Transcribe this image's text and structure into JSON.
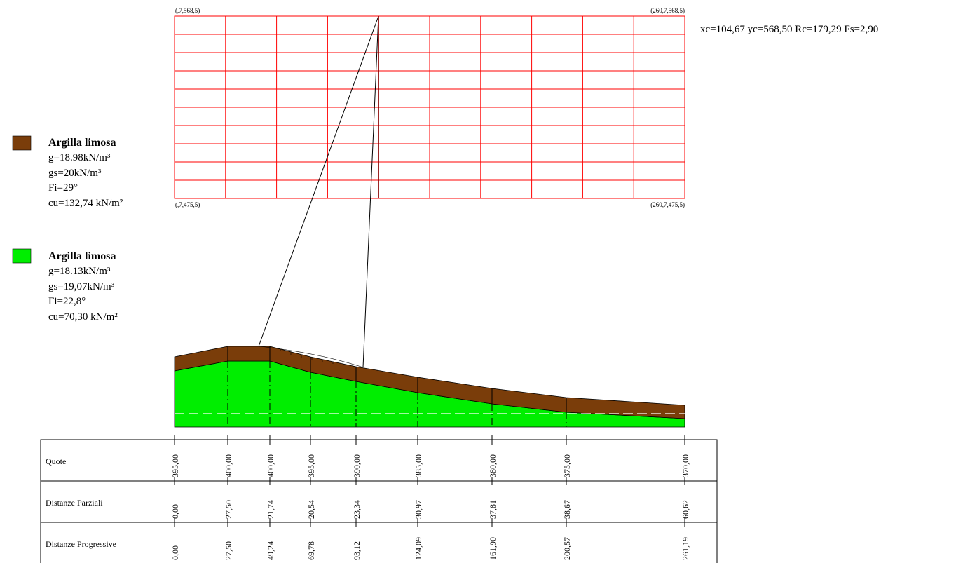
{
  "result": {
    "text": "xc=104,67 yc=568,50 Rc=179,29 Fs=2,90"
  },
  "grid": {
    "corner_top_left": "(,7,568,5)",
    "corner_top_right": "(260,7,568,5)",
    "corner_bottom_left": "(,7,475,5)",
    "corner_bottom_right": "(260,7,475,5)",
    "columns": 10,
    "rows": 10,
    "color": "#ff0000"
  },
  "materials": [
    {
      "name": "Argilla limosa",
      "color": "#7a3d0a",
      "g": "g=18.98kN/m³",
      "gs": "gs=20kN/m³",
      "fi": "Fi=29°",
      "cu": "cu=132,74 kN/m²"
    },
    {
      "name": "Argilla limosa",
      "color": "#00ee00",
      "g": "g=18.13kN/m³",
      "gs": "gs=19,07kN/m³",
      "fi": "Fi=22,8°",
      "cu": "cu=70,30 kN/m²"
    }
  ],
  "table": {
    "row_labels": [
      "Quote",
      "Distanze Parziali",
      "Distanze Progressive"
    ],
    "quote": [
      "395,00",
      "400,00",
      "400,00",
      "395,00",
      "390,00",
      "385,00",
      "380,00",
      "375,00",
      "370,00"
    ],
    "distanze_parziali": [
      "0,00",
      "27,50",
      "21,74",
      "20,54",
      "23,34",
      "30,97",
      "37,81",
      "38,67",
      "60,62"
    ],
    "distanze_progressive": [
      "0,00",
      "27,50",
      "49,24",
      "69,78",
      "93,12",
      "124,09",
      "161,90",
      "200,57",
      "261,19"
    ]
  }
}
